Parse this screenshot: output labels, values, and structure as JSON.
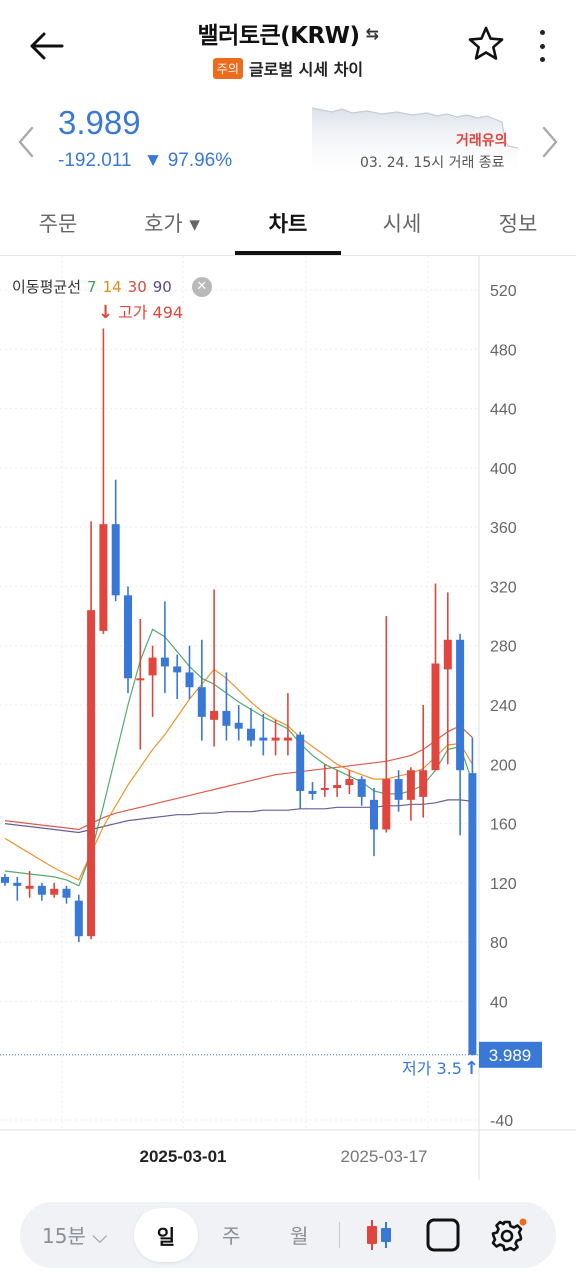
{
  "header": {
    "title": "밸러토큰(KRW)",
    "warning_badge": "주의",
    "subtitle": "글로벌 시세 차이"
  },
  "price": {
    "current": "3.989",
    "change_amount": "-192.011",
    "change_rate": "▼ 97.96%",
    "trade_warning": "거래유의",
    "trade_end": "03. 24. 15시 거래 종료"
  },
  "tabs": [
    {
      "label": "주문"
    },
    {
      "label": "호가 ▾"
    },
    {
      "label": "차트"
    },
    {
      "label": "시세"
    },
    {
      "label": "정보"
    }
  ],
  "ma_legend": {
    "label": "이동평균선",
    "periods": [
      "7",
      "14",
      "30",
      "90"
    ]
  },
  "chart_data": {
    "type": "candlestick",
    "y_ticks": [
      520,
      480,
      440,
      400,
      360,
      320,
      280,
      240,
      200,
      160,
      120,
      80,
      40,
      -40
    ],
    "ylim": [
      -40,
      520
    ],
    "x_tick_labels": [
      "2025-03-01",
      "2025-03-17"
    ],
    "high_label": "고가 494",
    "low_label": "저가 3.5",
    "current_price_label": "3.989",
    "current_price": 3.989,
    "colors": {
      "up": "#e0463d",
      "down": "#3a78d8",
      "ma7": "#3fa25c",
      "ma14": "#e88a1a",
      "ma30": "#d84a3a",
      "ma90": "#5b4a8a"
    },
    "candles": [
      {
        "o": 124,
        "h": 126,
        "l": 118,
        "c": 120
      },
      {
        "o": 120,
        "h": 124,
        "l": 108,
        "c": 118
      },
      {
        "o": 116,
        "h": 128,
        "l": 110,
        "c": 118
      },
      {
        "o": 118,
        "h": 120,
        "l": 108,
        "c": 112
      },
      {
        "o": 112,
        "h": 120,
        "l": 110,
        "c": 116
      },
      {
        "o": 116,
        "h": 118,
        "l": 106,
        "c": 110
      },
      {
        "o": 108,
        "h": 112,
        "l": 80,
        "c": 84
      },
      {
        "o": 84,
        "h": 364,
        "l": 82,
        "c": 304
      },
      {
        "o": 290,
        "h": 494,
        "l": 288,
        "c": 362
      },
      {
        "o": 362,
        "h": 392,
        "l": 310,
        "c": 314
      },
      {
        "o": 314,
        "h": 320,
        "l": 248,
        "c": 258
      },
      {
        "o": 258,
        "h": 298,
        "l": 210,
        "c": 258
      },
      {
        "o": 260,
        "h": 280,
        "l": 232,
        "c": 272
      },
      {
        "o": 272,
        "h": 310,
        "l": 248,
        "c": 266
      },
      {
        "o": 266,
        "h": 274,
        "l": 244,
        "c": 262
      },
      {
        "o": 262,
        "h": 280,
        "l": 244,
        "c": 252
      },
      {
        "o": 252,
        "h": 284,
        "l": 216,
        "c": 232
      },
      {
        "o": 230,
        "h": 318,
        "l": 212,
        "c": 236
      },
      {
        "o": 236,
        "h": 262,
        "l": 216,
        "c": 226
      },
      {
        "o": 228,
        "h": 240,
        "l": 216,
        "c": 224
      },
      {
        "o": 224,
        "h": 238,
        "l": 212,
        "c": 216
      },
      {
        "o": 218,
        "h": 234,
        "l": 206,
        "c": 216
      },
      {
        "o": 216,
        "h": 230,
        "l": 206,
        "c": 218
      },
      {
        "o": 216,
        "h": 248,
        "l": 206,
        "c": 218
      },
      {
        "o": 220,
        "h": 222,
        "l": 170,
        "c": 182
      },
      {
        "o": 182,
        "h": 188,
        "l": 176,
        "c": 180
      },
      {
        "o": 184,
        "h": 200,
        "l": 178,
        "c": 184
      },
      {
        "o": 184,
        "h": 196,
        "l": 178,
        "c": 186
      },
      {
        "o": 186,
        "h": 196,
        "l": 180,
        "c": 190
      },
      {
        "o": 190,
        "h": 192,
        "l": 172,
        "c": 178
      },
      {
        "o": 176,
        "h": 184,
        "l": 138,
        "c": 156
      },
      {
        "o": 156,
        "h": 300,
        "l": 154,
        "c": 190
      },
      {
        "o": 190,
        "h": 196,
        "l": 168,
        "c": 176
      },
      {
        "o": 176,
        "h": 198,
        "l": 162,
        "c": 196
      },
      {
        "o": 178,
        "h": 240,
        "l": 164,
        "c": 196
      },
      {
        "o": 196,
        "h": 322,
        "l": 196,
        "c": 268
      },
      {
        "o": 264,
        "h": 316,
        "l": 200,
        "c": 284
      },
      {
        "o": 284,
        "h": 288,
        "l": 152,
        "c": 196
      },
      {
        "o": 194,
        "h": 218,
        "l": 3.5,
        "c": 3.989
      }
    ],
    "ma7": [
      128,
      127,
      126,
      125,
      124,
      122,
      118,
      140,
      172,
      206,
      240,
      270,
      291,
      286,
      276,
      266,
      258,
      254,
      248,
      242,
      237,
      232,
      228,
      224,
      214,
      206,
      200,
      196,
      192,
      188,
      182,
      180,
      180,
      182,
      186,
      196,
      210,
      212,
      188
    ],
    "ma14": [
      150,
      145,
      140,
      135,
      130,
      126,
      122,
      140,
      158,
      172,
      186,
      198,
      210,
      220,
      232,
      244,
      254,
      264,
      258,
      250,
      242,
      235,
      230,
      226,
      218,
      212,
      206,
      200,
      196,
      193,
      190,
      190,
      192,
      194,
      197,
      205,
      213,
      214,
      200
    ],
    "ma30": [
      162,
      161,
      160,
      159,
      158,
      157,
      156,
      160,
      164,
      167,
      169,
      171,
      173,
      175,
      177,
      179,
      181,
      183,
      185,
      187,
      189,
      191,
      193,
      194,
      195,
      196,
      197,
      198,
      199,
      200,
      201,
      202,
      204,
      206,
      210,
      216,
      222,
      226,
      218
    ],
    "ma90": [
      160,
      159,
      158,
      157,
      156,
      155,
      154,
      156,
      158,
      160,
      162,
      163,
      164,
      165,
      166,
      166,
      167,
      167,
      168,
      168,
      168,
      169,
      169,
      169,
      170,
      170,
      170,
      171,
      171,
      171,
      171,
      172,
      172,
      173,
      173,
      174,
      176,
      176,
      175
    ]
  },
  "toolbar": {
    "interval": "15분 ⌵",
    "day": "일",
    "week": "주",
    "month": "월"
  }
}
